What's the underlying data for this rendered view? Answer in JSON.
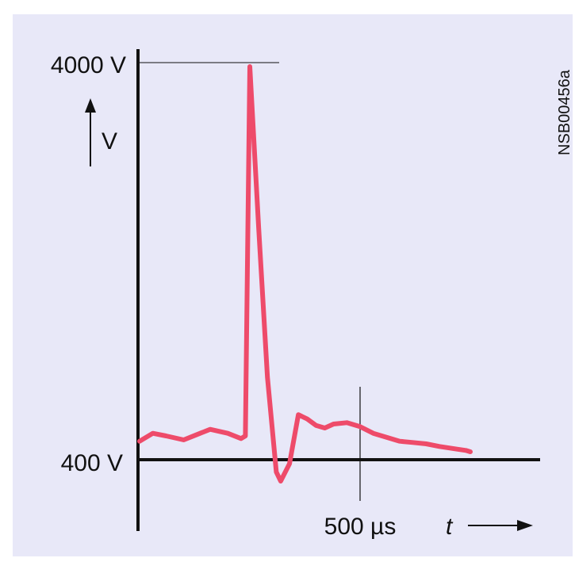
{
  "chart_data": {
    "type": "line",
    "title": "",
    "figure_code": "NSB00456a",
    "y_axis": {
      "symbol": "V",
      "tick_labels": [
        "4000 V",
        "400 V"
      ],
      "ticks": [
        4000,
        400
      ]
    },
    "x_axis": {
      "symbol": "t",
      "tick_labels": [
        "500 µs"
      ],
      "ticks": [
        500
      ]
    },
    "xlim": [
      0,
      900
    ],
    "ylim": [
      -140,
      4000
    ],
    "grid": false,
    "series": [
      {
        "color": "#ee4b6a",
        "points": [
          [
            0,
            540
          ],
          [
            30,
            600
          ],
          [
            60,
            580
          ],
          [
            100,
            550
          ],
          [
            130,
            590
          ],
          [
            160,
            630
          ],
          [
            200,
            600
          ],
          [
            230,
            560
          ],
          [
            240,
            580
          ],
          [
            250,
            4000
          ],
          [
            270,
            2500
          ],
          [
            290,
            1100
          ],
          [
            310,
            100
          ],
          [
            320,
            -120
          ],
          [
            340,
            300
          ],
          [
            360,
            750
          ],
          [
            380,
            710
          ],
          [
            400,
            660
          ],
          [
            420,
            640
          ],
          [
            440,
            670
          ],
          [
            470,
            680
          ],
          [
            500,
            650
          ],
          [
            530,
            600
          ],
          [
            560,
            570
          ],
          [
            590,
            540
          ],
          [
            620,
            530
          ],
          [
            650,
            520
          ],
          [
            680,
            500
          ],
          [
            720,
            480
          ],
          [
            740,
            470
          ],
          [
            750,
            460
          ]
        ]
      }
    ]
  }
}
